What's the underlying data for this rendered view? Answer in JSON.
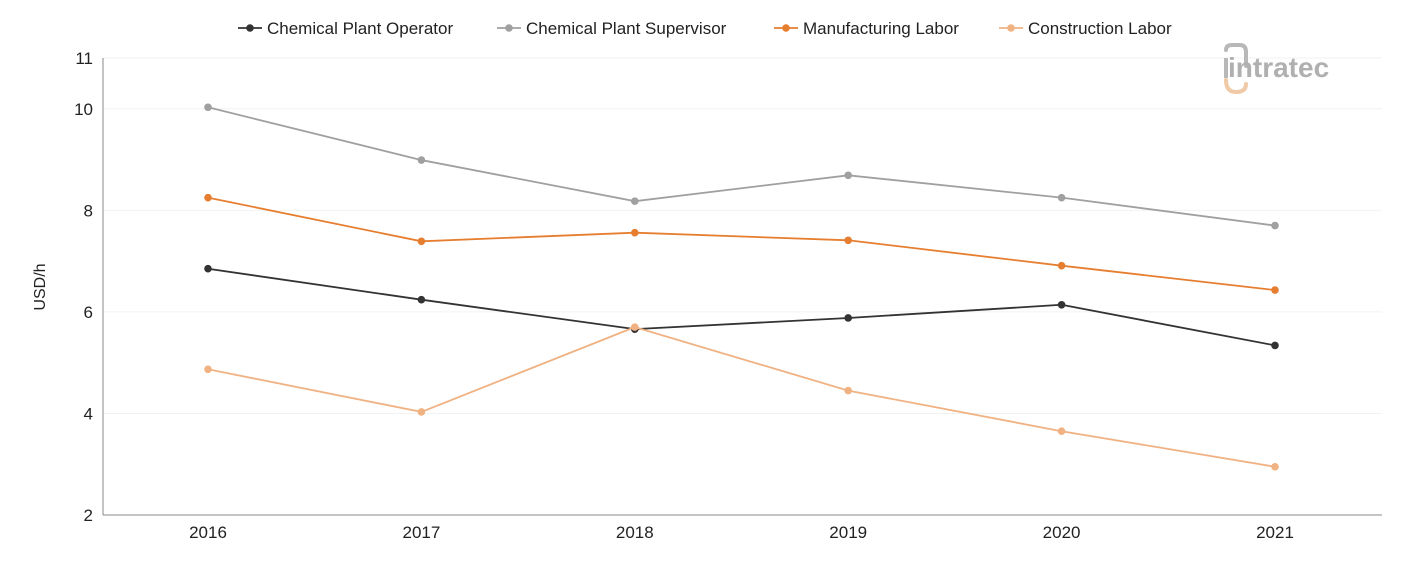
{
  "chart_data": {
    "type": "line",
    "title": "",
    "xlabel": "",
    "ylabel": "USD/h",
    "categories": [
      "2016",
      "2017",
      "2018",
      "2019",
      "2020",
      "2021"
    ],
    "ylim": [
      2,
      11
    ],
    "yticks": [
      2,
      4,
      6,
      8,
      10,
      11
    ],
    "grid": true,
    "legend": "top-center",
    "series": [
      {
        "name": "Chemical Plant Operator",
        "color": "#333333",
        "values": [
          6.85,
          6.24,
          5.66,
          5.88,
          6.14,
          5.34
        ]
      },
      {
        "name": "Chemical Plant Supervisor",
        "color": "#a0a0a0",
        "values": [
          10.03,
          8.99,
          8.18,
          8.69,
          8.25,
          7.7
        ]
      },
      {
        "name": "Manufacturing Labor",
        "color": "#e67e30",
        "values": [
          8.25,
          7.39,
          7.56,
          7.41,
          6.91,
          6.43
        ]
      },
      {
        "name": "Construction Labor",
        "color": "#f0b283",
        "values": [
          4.87,
          4.03,
          5.7,
          4.45,
          3.65,
          2.95
        ]
      }
    ]
  },
  "watermark": {
    "text": "intratec"
  }
}
